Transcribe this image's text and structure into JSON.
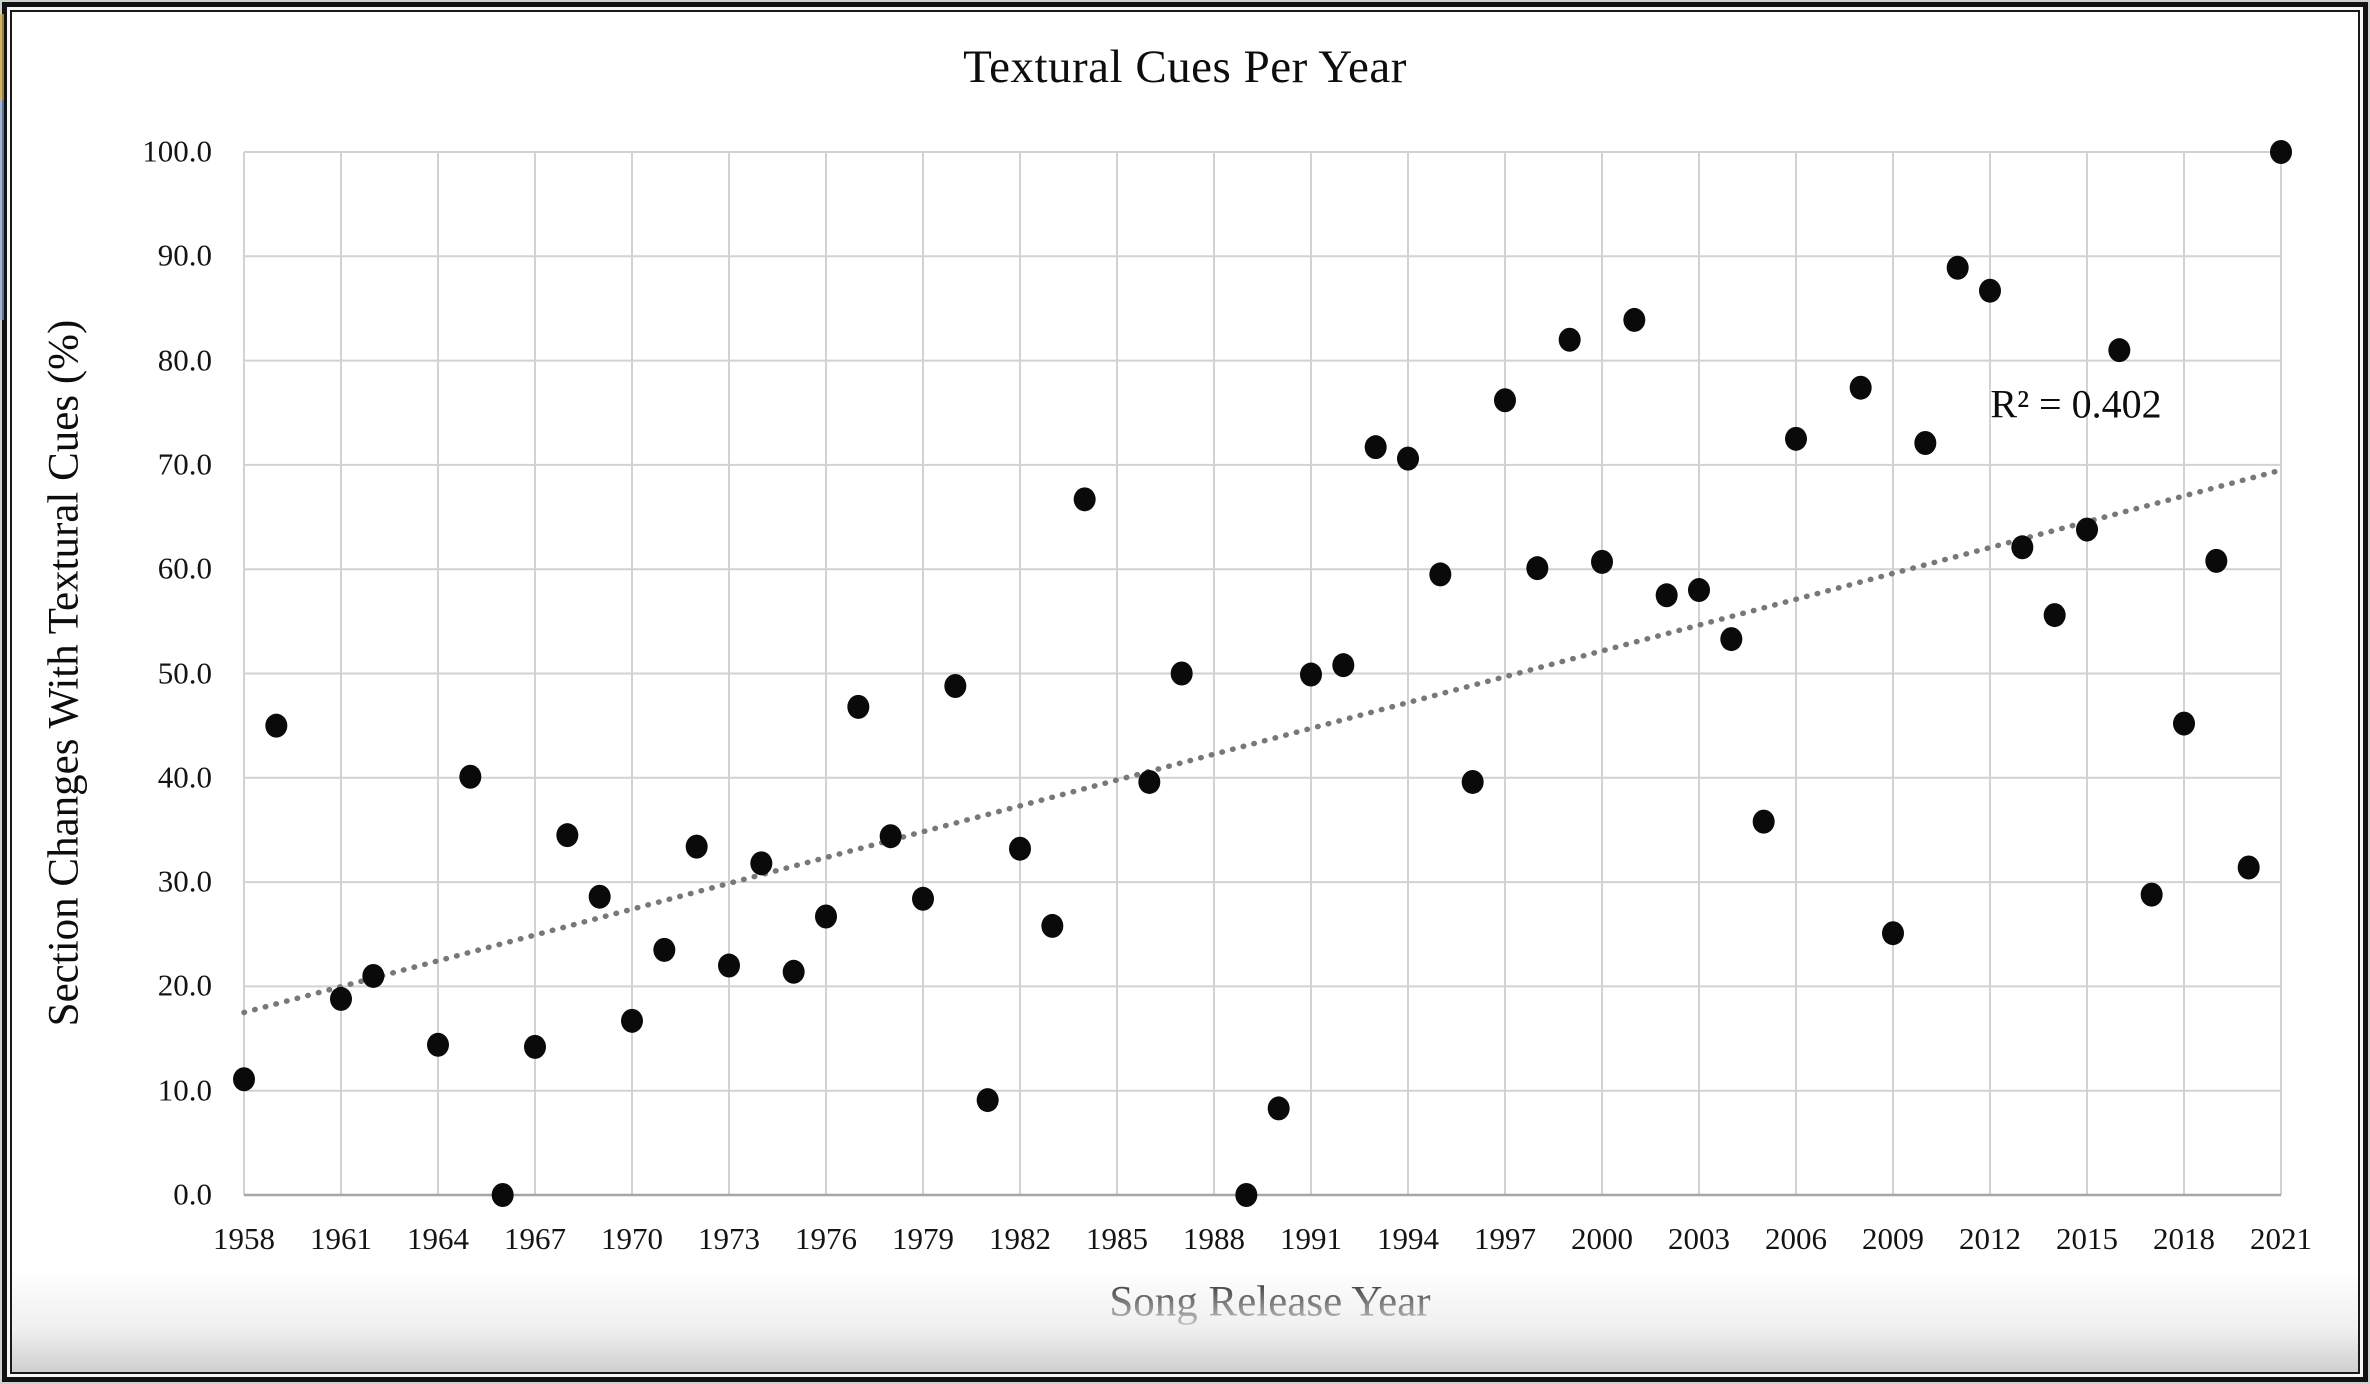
{
  "chart_data": {
    "type": "scatter",
    "title": "Textural Cues Per Year",
    "xlabel": "Song Release Year",
    "ylabel": "Section Changes With Textural Cues (%)",
    "xlim": [
      1958,
      2021
    ],
    "ylim": [
      0,
      100
    ],
    "grid": true,
    "legend": false,
    "x_ticks": [
      1958,
      1961,
      1964,
      1967,
      1970,
      1973,
      1976,
      1979,
      1982,
      1985,
      1988,
      1991,
      1994,
      1997,
      2000,
      2003,
      2006,
      2009,
      2012,
      2015,
      2018,
      2021
    ],
    "y_ticks": [
      "100.0",
      "90.0",
      "80.0",
      "70.0",
      "60.0",
      "50.0",
      "40.0",
      "30.0",
      "20.0",
      "10.0",
      "0.0"
    ],
    "y_tick_values": [
      100,
      90,
      80,
      70,
      60,
      50,
      40,
      30,
      20,
      10,
      0
    ],
    "points": [
      [
        1958,
        11.1
      ],
      [
        1959,
        45.0
      ],
      [
        1961,
        18.8
      ],
      [
        1962,
        21.0
      ],
      [
        1964,
        14.4
      ],
      [
        1965,
        40.1
      ],
      [
        1966,
        0.0
      ],
      [
        1967,
        14.2
      ],
      [
        1968,
        34.5
      ],
      [
        1969,
        28.6
      ],
      [
        1970,
        16.7
      ],
      [
        1971,
        23.5
      ],
      [
        1972,
        33.4
      ],
      [
        1973,
        22.0
      ],
      [
        1974,
        31.8
      ],
      [
        1975,
        21.4
      ],
      [
        1976,
        26.7
      ],
      [
        1977,
        46.8
      ],
      [
        1978,
        34.4
      ],
      [
        1979,
        28.4
      ],
      [
        1980,
        48.8
      ],
      [
        1981,
        9.1
      ],
      [
        1982,
        33.2
      ],
      [
        1983,
        25.8
      ],
      [
        1984,
        66.7
      ],
      [
        1986,
        39.6
      ],
      [
        1987,
        50.0
      ],
      [
        1989,
        0.0
      ],
      [
        1990,
        8.3
      ],
      [
        1991,
        49.9
      ],
      [
        1992,
        50.8
      ],
      [
        1993,
        71.7
      ],
      [
        1994,
        70.6
      ],
      [
        1995,
        59.5
      ],
      [
        1996,
        39.6
      ],
      [
        1997,
        76.2
      ],
      [
        1998,
        60.1
      ],
      [
        1999,
        82.0
      ],
      [
        2000,
        60.7
      ],
      [
        2001,
        83.9
      ],
      [
        2002,
        57.5
      ],
      [
        2003,
        58.0
      ],
      [
        2004,
        53.3
      ],
      [
        2005,
        35.8
      ],
      [
        2006,
        72.5
      ],
      [
        2008,
        77.4
      ],
      [
        2009,
        25.1
      ],
      [
        2010,
        72.1
      ],
      [
        2011,
        88.9
      ],
      [
        2012,
        86.7
      ],
      [
        2013,
        62.1
      ],
      [
        2014,
        55.6
      ],
      [
        2015,
        63.8
      ],
      [
        2016,
        81.0
      ],
      [
        2017,
        28.8
      ],
      [
        2018,
        45.2
      ],
      [
        2019,
        60.8
      ],
      [
        2020,
        31.4
      ],
      [
        2021,
        100.0
      ]
    ],
    "trendline": {
      "type": "linear",
      "style": "dotted",
      "x_start": 1958,
      "y_start": 17.5,
      "x_end": 2021,
      "y_end": 69.5,
      "r_squared": 0.402,
      "label": "R² = 0.402"
    },
    "colors": {
      "marker": "#0a0a0a",
      "gridline": "#d2d2d2",
      "axis_line": "#a6a6a6",
      "trendline": "#787878",
      "text": "#111111"
    }
  }
}
